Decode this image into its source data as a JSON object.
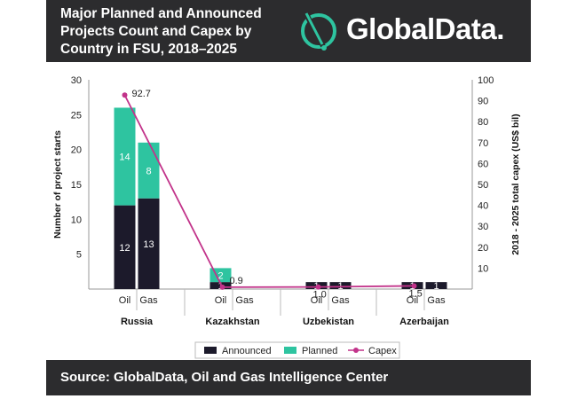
{
  "header": {
    "title": "Major Planned and Announced Projects Count and Capex by Country in FSU, 2018–2025",
    "logo_text": "GlobalData."
  },
  "footer": {
    "source": "Source: GlobalData, Oil and Gas Intelligence Center"
  },
  "colors": {
    "announced": "#1c1a2b",
    "planned": "#2ec4a0",
    "capex": "#c2338a",
    "dark_bar": "#2c2c2e",
    "logo_accent": "#2ec4a0"
  },
  "icons": {
    "logo": "globaldata-logo-icon"
  },
  "chart_data": {
    "type": "bar",
    "stacked": true,
    "categories": [
      "Russia",
      "Kazakhstan",
      "Uzbekistan",
      "Azerbaijan"
    ],
    "subcategories": [
      "Oil",
      "Gas"
    ],
    "series": [
      {
        "name": "Announced",
        "axis": "left",
        "values": [
          [
            12,
            13
          ],
          [
            1,
            0
          ],
          [
            1,
            1
          ],
          [
            1,
            1
          ]
        ]
      },
      {
        "name": "Planned",
        "axis": "left",
        "values": [
          [
            14,
            8
          ],
          [
            2,
            0
          ],
          [
            0,
            0
          ],
          [
            0,
            0
          ]
        ]
      }
    ],
    "line_series": {
      "name": "Capex",
      "axis": "right",
      "values": [
        92.7,
        0.9,
        1.0,
        1.5
      ],
      "labels": [
        "92.7",
        "0.9",
        "1.0",
        "1.5"
      ]
    },
    "ylabel": "Number of project starts",
    "y2label": "2018 - 2025 total capex (US$ bil)",
    "ylim": [
      0,
      30
    ],
    "y2lim": [
      0,
      100
    ],
    "yticks": [
      5,
      10,
      15,
      20,
      25,
      30
    ],
    "y2ticks": [
      10,
      20,
      30,
      40,
      50,
      60,
      70,
      80,
      90,
      100
    ],
    "legend_position": "bottom",
    "grid": false
  }
}
